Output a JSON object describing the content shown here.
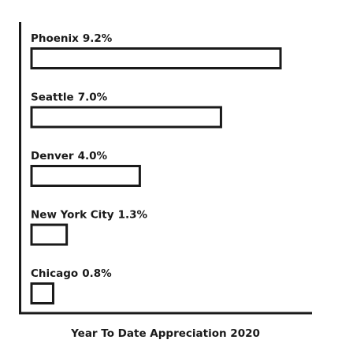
{
  "chart_data": {
    "type": "bar",
    "orientation": "horizontal",
    "title": "Year To Date Appreciation 2020",
    "categories": [
      "Phoenix",
      "Seattle",
      "Denver",
      "New York City",
      "Chicago"
    ],
    "values": [
      9.2,
      7.0,
      4.0,
      1.3,
      0.8
    ],
    "value_labels": [
      "9.2%",
      "7.0%",
      "4.0%",
      "1.3%",
      "0.8%"
    ],
    "color": "#ffffff"
  }
}
